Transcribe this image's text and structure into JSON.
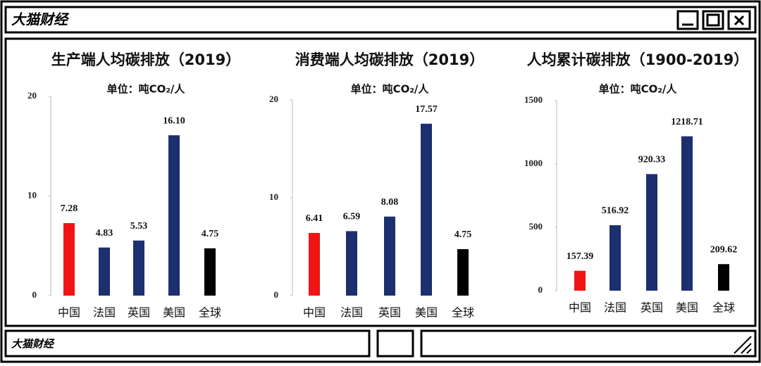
{
  "window": {
    "title": "大猫财经",
    "footer": "大猫财经"
  },
  "chart_data": [
    {
      "type": "bar",
      "title": "生产端人均碳排放（2019）",
      "subtitle": "单位：吨CO₂/人",
      "categories": [
        "中国",
        "法国",
        "英国",
        "美国",
        "全球"
      ],
      "values": [
        7.28,
        4.83,
        5.53,
        16.1,
        4.75
      ],
      "value_labels": [
        "7.28",
        "4.83",
        "5.53",
        "16.10",
        "4.75"
      ],
      "colors": [
        "#f01414",
        "#1c2f6e",
        "#1c2f6e",
        "#1c2f6e",
        "#000000"
      ],
      "ylim": [
        0,
        20
      ],
      "yticks": [
        0,
        10,
        20
      ]
    },
    {
      "type": "bar",
      "title": "消费端人均碳排放（2019）",
      "subtitle": "单位：吨CO₂/人",
      "categories": [
        "中国",
        "法国",
        "英国",
        "美国",
        "全球"
      ],
      "values": [
        6.41,
        6.59,
        8.08,
        17.57,
        4.75
      ],
      "colors": [
        "#f01414",
        "#1c2f6e",
        "#1c2f6e",
        "#1c2f6e",
        "#000000"
      ],
      "ylim": [
        0,
        20
      ],
      "yticks": [
        0,
        10,
        20
      ]
    },
    {
      "type": "bar",
      "title": "人均累计碳排放（1900-2019）",
      "subtitle": "单位：吨CO₂/人",
      "categories": [
        "中国",
        "法国",
        "英国",
        "美国",
        "全球"
      ],
      "values": [
        157.39,
        516.92,
        920.33,
        1218.71,
        209.62
      ],
      "colors": [
        "#f01414",
        "#1c2f6e",
        "#1c2f6e",
        "#1c2f6e",
        "#000000"
      ],
      "ylim": [
        0,
        1500
      ],
      "yticks": [
        0,
        500,
        1000,
        1500
      ]
    }
  ]
}
